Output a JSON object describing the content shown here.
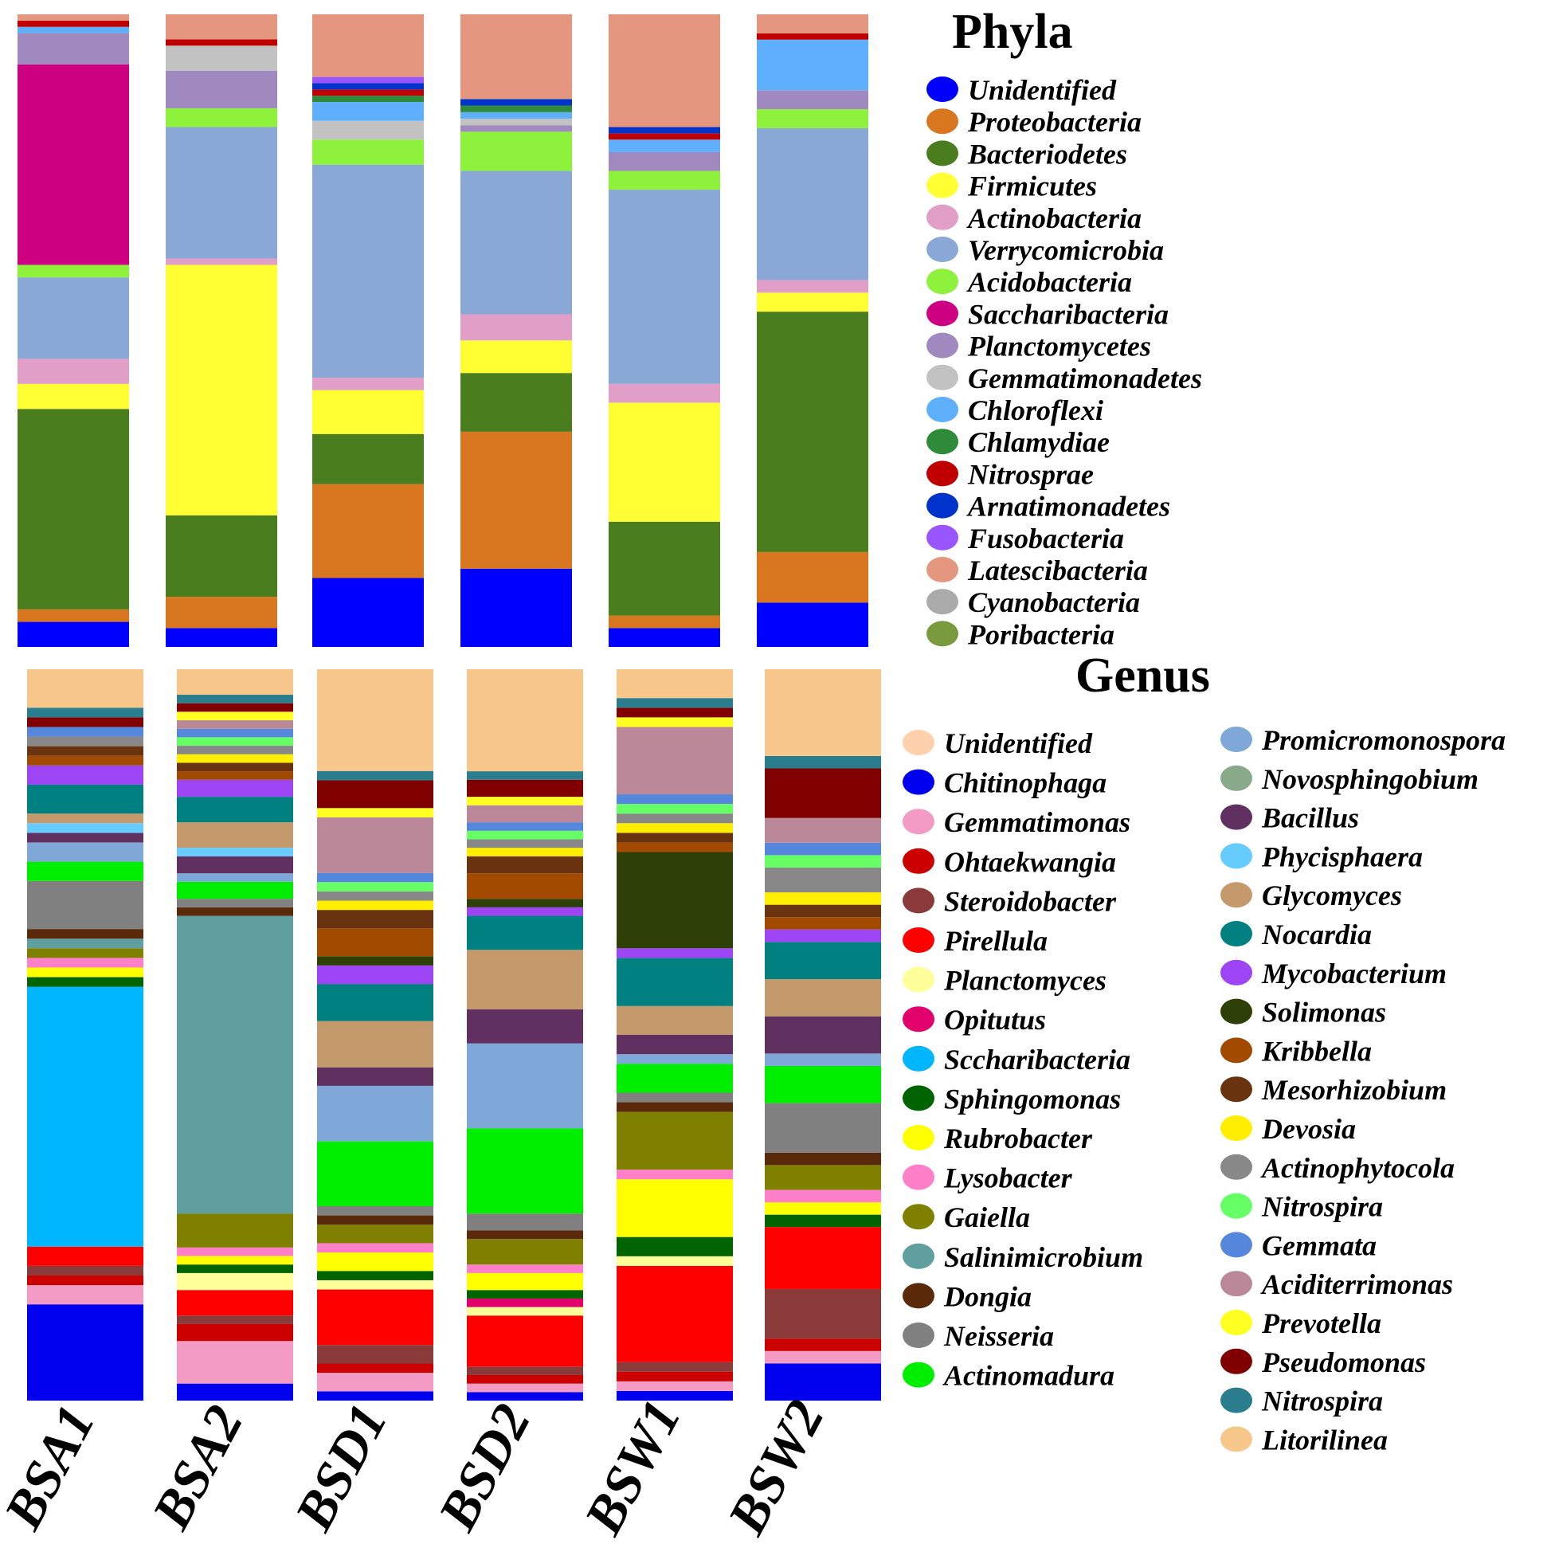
{
  "chart_data": [
    {
      "type": "bar",
      "stacked": "100%",
      "title": "Phyla",
      "categories": [
        "BSA1",
        "BSA2",
        "BSD1",
        "BSD2",
        "BSW1",
        "BSW2"
      ],
      "legend_placement": "right",
      "grid": false,
      "series": [
        {
          "name": "Unidentified",
          "color": "#0000ff",
          "values": [
            4,
            3,
            11,
            12,
            3,
            7
          ]
        },
        {
          "name": "Proteobacteria",
          "color": "#d97720",
          "values": [
            2,
            5,
            15,
            21,
            2,
            8
          ]
        },
        {
          "name": "Bacteriodetes",
          "color": "#4a7d1e",
          "values": [
            32,
            13,
            8,
            9,
            15,
            38
          ]
        },
        {
          "name": "Firmicutes",
          "color": "#ffff33",
          "values": [
            4,
            40,
            7,
            5,
            19,
            3
          ]
        },
        {
          "name": "Actinobacteria",
          "color": "#e19ec6",
          "values": [
            4,
            1,
            2,
            4,
            3,
            2
          ]
        },
        {
          "name": "Verrycomicrobia",
          "color": "#8aa8d6",
          "values": [
            13,
            21,
            34,
            22,
            31,
            24
          ]
        },
        {
          "name": "Acidobacteria",
          "color": "#8ef23c",
          "values": [
            2,
            3,
            4,
            6,
            3,
            3
          ]
        },
        {
          "name": "Saccharibacteria",
          "color": "#cc0080",
          "values": [
            32,
            0,
            0,
            0,
            0,
            0
          ]
        },
        {
          "name": "Planctomycetes",
          "color": "#a089bf",
          "values": [
            5,
            6,
            0,
            1,
            3,
            3
          ]
        },
        {
          "name": "Gemmatimonadetes",
          "color": "#c2c2c2",
          "values": [
            0,
            4,
            3,
            1,
            0,
            0
          ]
        },
        {
          "name": "Chloroflexi",
          "color": "#5fb0fc",
          "values": [
            1,
            0,
            3,
            1,
            2,
            8
          ]
        },
        {
          "name": "Chlamydiae",
          "color": "#2e8b3a",
          "values": [
            0,
            0,
            1,
            1,
            0,
            0
          ]
        },
        {
          "name": "Nitrosprae",
          "color": "#c00000",
          "values": [
            1,
            1,
            1,
            0,
            1,
            1
          ]
        },
        {
          "name": "Arnatimonadetes",
          "color": "#0033cc",
          "values": [
            0,
            0,
            1,
            1,
            1,
            0
          ]
        },
        {
          "name": "Fusobacteria",
          "color": "#9955ff",
          "values": [
            0,
            0,
            1,
            0,
            0,
            0
          ]
        },
        {
          "name": "Latescibacteria",
          "color": "#e4977e",
          "values": [
            1,
            4,
            10,
            13,
            18,
            3
          ]
        },
        {
          "name": "Cyanobacteria",
          "color": "#aaaaaa",
          "values": [
            0,
            0,
            0,
            0,
            0,
            0
          ]
        },
        {
          "name": "Poribacteria",
          "color": "#7a9a3e",
          "values": [
            0,
            0,
            0,
            0,
            0,
            0
          ]
        }
      ]
    },
    {
      "type": "bar",
      "stacked": "100%",
      "title": "Genus",
      "categories": [
        "BSA1",
        "BSA2",
        "BSD1",
        "BSD2",
        "BSW1",
        "BSW2"
      ],
      "legend_placement": "right",
      "grid": false,
      "series": [
        {
          "name": "Unidentified",
          "color": "#ffd0ac",
          "values": [
            0,
            0,
            0,
            0,
            0,
            0
          ]
        },
        {
          "name": "Chitinophaga",
          "color": "#0000ee",
          "values": [
            10,
            2,
            1,
            1,
            1,
            3
          ]
        },
        {
          "name": "Gemmatimonas",
          "color": "#f39bc4",
          "values": [
            2,
            5,
            2,
            1,
            1,
            1
          ]
        },
        {
          "name": "Ohtaekwangia",
          "color": "#cc0000",
          "values": [
            1,
            2,
            1,
            1,
            1,
            1
          ]
        },
        {
          "name": "Steroidobacter",
          "color": "#8b3a3a",
          "values": [
            1,
            1,
            2,
            1,
            1,
            4
          ]
        },
        {
          "name": "Pirellula",
          "color": "#ff0000",
          "values": [
            2,
            3,
            6,
            6,
            10,
            5
          ]
        },
        {
          "name": "Planctomyces",
          "color": "#ffff99",
          "values": [
            0,
            2,
            1,
            1,
            1,
            0
          ]
        },
        {
          "name": "Opitutus",
          "color": "#e2006c",
          "values": [
            0,
            0,
            0,
            1,
            0,
            0
          ]
        },
        {
          "name": "Sccharibacteria",
          "color": "#00b7ff",
          "values": [
            27,
            0,
            0,
            0,
            0,
            0
          ]
        },
        {
          "name": "Sphingomonas",
          "color": "#006400",
          "values": [
            1,
            1,
            1,
            1,
            2,
            1
          ]
        },
        {
          "name": "Rubrobacter",
          "color": "#ffff00",
          "values": [
            1,
            1,
            2,
            2,
            6,
            1
          ]
        },
        {
          "name": "Lysobacter",
          "color": "#ff80c8",
          "values": [
            1,
            1,
            1,
            1,
            1,
            1
          ]
        },
        {
          "name": "Gaiella",
          "color": "#808000",
          "values": [
            1,
            4,
            2,
            3,
            6,
            2
          ]
        },
        {
          "name": "Salinimicrobium",
          "color": "#5f9f9f",
          "values": [
            1,
            35,
            0,
            0,
            0,
            0
          ]
        },
        {
          "name": "Dongia",
          "color": "#5a2a0a",
          "values": [
            1,
            1,
            1,
            1,
            1,
            1
          ]
        },
        {
          "name": "Neisseria",
          "color": "#808080",
          "values": [
            5,
            1,
            1,
            2,
            1,
            4
          ]
        },
        {
          "name": "Actinomadura",
          "color": "#00ee00",
          "values": [
            2,
            2,
            7,
            10,
            3,
            3
          ]
        },
        {
          "name": "Promicromonospora",
          "color": "#7fa8d8",
          "values": [
            2,
            1,
            6,
            10,
            1,
            1
          ]
        },
        {
          "name": "Novosphingobium",
          "color": "#88aa88",
          "values": [
            0,
            0,
            0,
            0,
            0,
            0
          ]
        },
        {
          "name": "Bacillus",
          "color": "#603060",
          "values": [
            1,
            2,
            2,
            4,
            2,
            3
          ]
        },
        {
          "name": "Phycisphaera",
          "color": "#66ccff",
          "values": [
            1,
            1,
            0,
            0,
            0,
            0
          ]
        },
        {
          "name": "Glycomyces",
          "color": "#c49a6c",
          "values": [
            1,
            3,
            5,
            7,
            3,
            3
          ]
        },
        {
          "name": "Nocardia",
          "color": "#008080",
          "values": [
            3,
            3,
            4,
            4,
            5,
            3
          ]
        },
        {
          "name": "Mycobacterium",
          "color": "#9d44f5",
          "values": [
            2,
            2,
            2,
            1,
            1,
            1
          ]
        },
        {
          "name": "Solimonas",
          "color": "#2f3f08",
          "values": [
            0,
            0,
            1,
            1,
            10,
            0
          ]
        },
        {
          "name": "Kribbella",
          "color": "#a24a00",
          "values": [
            1,
            1,
            3,
            3,
            1,
            1
          ]
        },
        {
          "name": "Mesorhizobium",
          "color": "#6b3410",
          "values": [
            1,
            1,
            2,
            2,
            1,
            1
          ]
        },
        {
          "name": "Devosia",
          "color": "#ffee00",
          "values": [
            0,
            1,
            1,
            1,
            1,
            1
          ]
        },
        {
          "name": "Actinophytocola",
          "color": "#888888",
          "values": [
            1,
            1,
            1,
            1,
            1,
            2
          ]
        },
        {
          "name": "Nitrospira",
          "color": "#66ff66",
          "values": [
            0,
            1,
            1,
            1,
            1,
            1
          ]
        },
        {
          "name": "Gemmata",
          "color": "#5588dd",
          "values": [
            1,
            1,
            1,
            1,
            1,
            1
          ]
        },
        {
          "name": "Aciditerrimonas",
          "color": "#bb8899",
          "values": [
            0,
            1,
            6,
            2,
            7,
            2
          ]
        },
        {
          "name": "Prevotella",
          "color": "#ffff22",
          "values": [
            0,
            1,
            1,
            1,
            1,
            0
          ]
        },
        {
          "name": "Pseudomonas",
          "color": "#800000",
          "values": [
            1,
            1,
            3,
            2,
            1,
            4
          ]
        },
        {
          "name": "Nitrospira",
          "color": "#2a7d8d",
          "values": [
            1,
            1,
            1,
            1,
            1,
            1
          ]
        },
        {
          "name": "Litorilinea",
          "color": "#f8c78c",
          "values": [
            4,
            3,
            11,
            12,
            3,
            7
          ]
        }
      ]
    }
  ]
}
